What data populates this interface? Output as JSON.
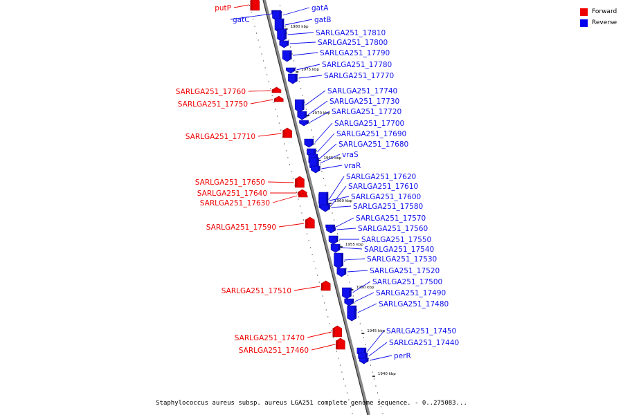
{
  "legend": {
    "forward": {
      "label": "Forward",
      "color": "#ee0000"
    },
    "reverse": {
      "label": "Reverse",
      "color": "#0000ee"
    }
  },
  "colors": {
    "forward": "#ee0000",
    "forward_dark": "#a80000",
    "reverse": "#1010ee",
    "reverse_dark": "#000090",
    "backbone": "#888888",
    "backbone_dark": "#333333"
  },
  "caption": "Staphylococcus aureus subsp. aureus LGA251 complete genome sequence. - 0..275083...",
  "scale": [
    {
      "label": "1980 kbp"
    },
    {
      "label": "1975 kbp"
    },
    {
      "label": "1970 kbp"
    },
    {
      "label": "1965 kbp"
    },
    {
      "label": "1960 kbp"
    },
    {
      "label": "1955 kbp"
    },
    {
      "label": "1950 kbp"
    },
    {
      "label": "1945 kbp"
    },
    {
      "label": "1940 kbp"
    }
  ],
  "genes": [
    {
      "name": "putP",
      "strand": "forward"
    },
    {
      "name": "gatC",
      "strand": "reverse"
    },
    {
      "name": "gatA",
      "strand": "reverse"
    },
    {
      "name": "gatB",
      "strand": "reverse"
    },
    {
      "name": "SARLGA251_17810",
      "strand": "reverse"
    },
    {
      "name": "SARLGA251_17800",
      "strand": "reverse"
    },
    {
      "name": "SARLGA251_17790",
      "strand": "reverse"
    },
    {
      "name": "SARLGA251_17780",
      "strand": "reverse"
    },
    {
      "name": "SARLGA251_17770",
      "strand": "reverse"
    },
    {
      "name": "SARLGA251_17760",
      "strand": "forward"
    },
    {
      "name": "SARLGA251_17750",
      "strand": "forward"
    },
    {
      "name": "SARLGA251_17740",
      "strand": "reverse"
    },
    {
      "name": "SARLGA251_17730",
      "strand": "reverse"
    },
    {
      "name": "SARLGA251_17720",
      "strand": "reverse"
    },
    {
      "name": "SARLGA251_17710",
      "strand": "forward"
    },
    {
      "name": "SARLGA251_17700",
      "strand": "reverse"
    },
    {
      "name": "SARLGA251_17690",
      "strand": "reverse"
    },
    {
      "name": "SARLGA251_17680",
      "strand": "reverse"
    },
    {
      "name": "vraS",
      "strand": "reverse"
    },
    {
      "name": "vraR",
      "strand": "reverse"
    },
    {
      "name": "SARLGA251_17650",
      "strand": "forward"
    },
    {
      "name": "SARLGA251_17640",
      "strand": "forward"
    },
    {
      "name": "SARLGA251_17630",
      "strand": "forward"
    },
    {
      "name": "SARLGA251_17620",
      "strand": "reverse"
    },
    {
      "name": "SARLGA251_17610",
      "strand": "reverse"
    },
    {
      "name": "SARLGA251_17600",
      "strand": "reverse"
    },
    {
      "name": "SARLGA251_17580",
      "strand": "reverse"
    },
    {
      "name": "SARLGA251_17590",
      "strand": "forward"
    },
    {
      "name": "SARLGA251_17570",
      "strand": "reverse"
    },
    {
      "name": "SARLGA251_17560",
      "strand": "reverse"
    },
    {
      "name": "SARLGA251_17550",
      "strand": "reverse"
    },
    {
      "name": "SARLGA251_17540",
      "strand": "reverse"
    },
    {
      "name": "SARLGA251_17530",
      "strand": "reverse"
    },
    {
      "name": "SARLGA251_17520",
      "strand": "reverse"
    },
    {
      "name": "SARLGA251_17510",
      "strand": "forward"
    },
    {
      "name": "SARLGA251_17500",
      "strand": "reverse"
    },
    {
      "name": "SARLGA251_17490",
      "strand": "reverse"
    },
    {
      "name": "SARLGA251_17480",
      "strand": "reverse"
    },
    {
      "name": "SARLGA251_17470",
      "strand": "forward"
    },
    {
      "name": "SARLGA251_17460",
      "strand": "forward"
    },
    {
      "name": "SARLGA251_17450",
      "strand": "reverse"
    },
    {
      "name": "SARLGA251_17440",
      "strand": "reverse"
    },
    {
      "name": "perR",
      "strand": "reverse"
    }
  ]
}
